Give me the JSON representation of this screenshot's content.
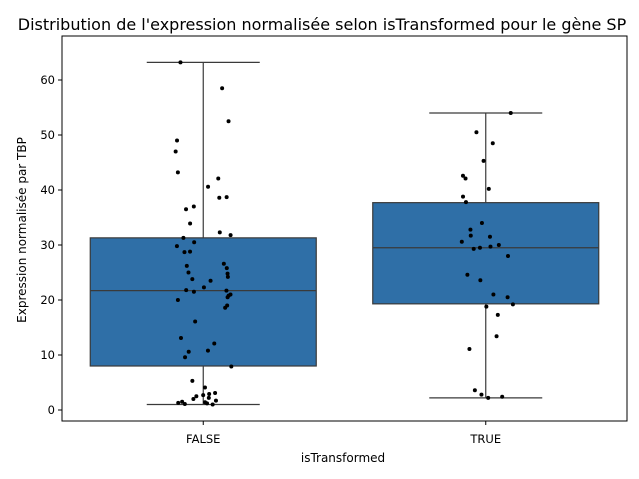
{
  "chart_data": {
    "type": "box",
    "title": "Distribution de l'expression normalisée selon isTransformed pour le gène SP",
    "xlabel": "isTransformed",
    "ylabel": "Expression normalisée par TBP",
    "ylim": [
      -2,
      68
    ],
    "yticks": [
      0,
      10,
      20,
      30,
      40,
      50,
      60
    ],
    "categories": [
      "FALSE",
      "TRUE"
    ],
    "box_color": "#2f6fa7",
    "point_color": "#000000",
    "boxes": [
      {
        "category": "FALSE",
        "whisker_low": 1.0,
        "q1": 8.0,
        "median": 21.7,
        "q3": 31.3,
        "whisker_high": 63.2,
        "points": [
          63.2,
          58.5,
          52.5,
          49.0,
          47.0,
          43.2,
          42.1,
          40.6,
          38.7,
          38.6,
          37.0,
          36.5,
          33.9,
          32.3,
          31.8,
          31.3,
          30.5,
          29.8,
          28.8,
          28.7,
          26.6,
          26.2,
          25.8,
          25.0,
          24.8,
          24.2,
          23.8,
          23.5,
          22.3,
          21.8,
          21.7,
          21.5,
          21.0,
          20.8,
          20.5,
          20.0,
          19.0,
          18.6,
          16.1,
          13.1,
          12.1,
          10.8,
          10.6,
          9.6,
          7.9,
          5.3,
          4.1,
          3.1,
          2.9,
          2.7,
          2.5,
          2.2,
          2.0,
          1.7,
          1.5,
          1.4,
          1.3,
          1.2,
          1.1,
          1.0
        ]
      },
      {
        "category": "TRUE",
        "whisker_low": 2.2,
        "q1": 19.3,
        "median": 29.5,
        "q3": 37.7,
        "whisker_high": 54.0,
        "points": [
          54.0,
          50.5,
          48.5,
          45.3,
          42.6,
          42.1,
          40.2,
          38.8,
          37.8,
          34.0,
          32.8,
          31.7,
          31.5,
          30.6,
          30.0,
          29.7,
          29.5,
          29.3,
          28.0,
          24.6,
          23.6,
          21.0,
          20.5,
          19.2,
          18.8,
          17.3,
          13.4,
          11.1,
          3.6,
          2.8,
          2.4,
          2.2
        ]
      }
    ],
    "grid": false,
    "legend": "none"
  }
}
